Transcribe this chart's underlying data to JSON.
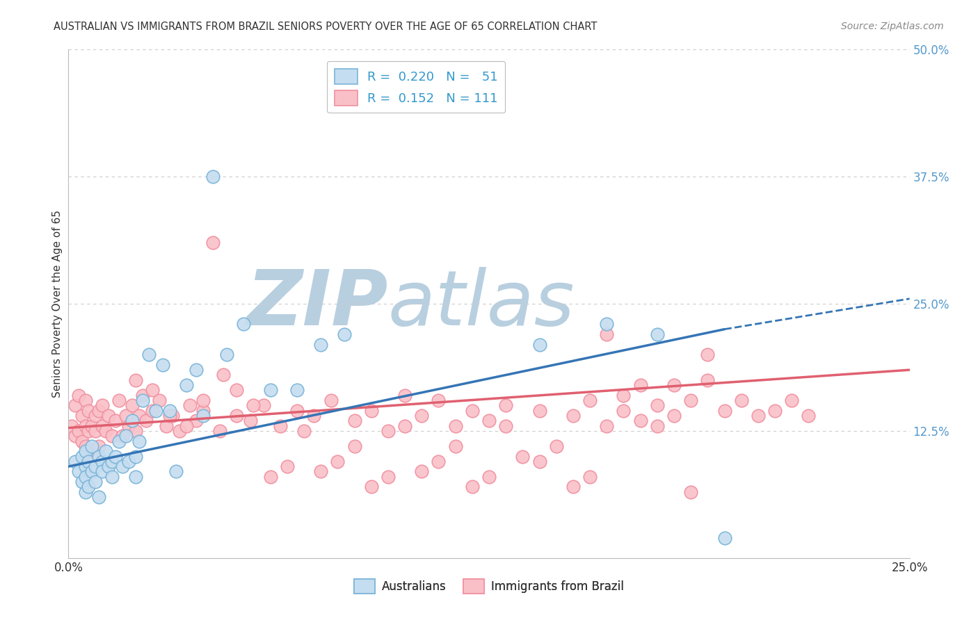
{
  "title": "AUSTRALIAN VS IMMIGRANTS FROM BRAZIL SENIORS POVERTY OVER THE AGE OF 65 CORRELATION CHART",
  "source": "Source: ZipAtlas.com",
  "ylabel": "Seniors Poverty Over the Age of 65",
  "xlim": [
    0.0,
    0.25
  ],
  "ylim": [
    0.0,
    0.5
  ],
  "grid_color": "#cccccc",
  "background_color": "#ffffff",
  "watermark_zip": "ZIP",
  "watermark_atlas": "atlas",
  "watermark_color_zip": "#b8cfe0",
  "watermark_color_atlas": "#b8cfe0",
  "blue_edge": "#7ab4d8",
  "pink_edge": "#f090a0",
  "blue_fill": "#c5ddf0",
  "pink_fill": "#fac0c8",
  "trend_blue": "#3575b5",
  "trend_pink": "#e06070",
  "title_color": "#333333",
  "source_color": "#888888",
  "tick_color_x": "#333333",
  "tick_color_y": "#5599cc",
  "label_color": "#333333",
  "legend_label_color": "#3399cc",
  "aus_x": [
    0.002,
    0.003,
    0.004,
    0.004,
    0.005,
    0.005,
    0.005,
    0.005,
    0.006,
    0.006,
    0.007,
    0.007,
    0.008,
    0.008,
    0.009,
    0.009,
    0.01,
    0.01,
    0.011,
    0.012,
    0.013,
    0.013,
    0.014,
    0.015,
    0.016,
    0.017,
    0.018,
    0.019,
    0.02,
    0.02,
    0.021,
    0.022,
    0.024,
    0.026,
    0.028,
    0.03,
    0.032,
    0.035,
    0.038,
    0.04,
    0.043,
    0.047,
    0.052,
    0.06,
    0.068,
    0.075,
    0.082,
    0.14,
    0.16,
    0.175,
    0.195
  ],
  "aus_y": [
    0.095,
    0.085,
    0.1,
    0.075,
    0.09,
    0.105,
    0.08,
    0.065,
    0.095,
    0.07,
    0.11,
    0.085,
    0.09,
    0.075,
    0.1,
    0.06,
    0.095,
    0.085,
    0.105,
    0.09,
    0.095,
    0.08,
    0.1,
    0.115,
    0.09,
    0.12,
    0.095,
    0.135,
    0.1,
    0.08,
    0.115,
    0.155,
    0.2,
    0.145,
    0.19,
    0.145,
    0.085,
    0.17,
    0.185,
    0.14,
    0.375,
    0.2,
    0.23,
    0.165,
    0.165,
    0.21,
    0.22,
    0.21,
    0.23,
    0.22,
    0.02
  ],
  "bra_x": [
    0.001,
    0.002,
    0.002,
    0.003,
    0.003,
    0.004,
    0.004,
    0.005,
    0.005,
    0.005,
    0.006,
    0.006,
    0.007,
    0.007,
    0.008,
    0.008,
    0.009,
    0.009,
    0.01,
    0.01,
    0.011,
    0.012,
    0.013,
    0.014,
    0.015,
    0.016,
    0.017,
    0.018,
    0.019,
    0.02,
    0.021,
    0.022,
    0.023,
    0.025,
    0.027,
    0.029,
    0.031,
    0.033,
    0.036,
    0.038,
    0.04,
    0.043,
    0.046,
    0.05,
    0.054,
    0.058,
    0.063,
    0.068,
    0.073,
    0.078,
    0.085,
    0.09,
    0.095,
    0.1,
    0.105,
    0.11,
    0.115,
    0.12,
    0.125,
    0.13,
    0.14,
    0.15,
    0.155,
    0.16,
    0.165,
    0.17,
    0.175,
    0.18,
    0.185,
    0.19,
    0.195,
    0.2,
    0.205,
    0.21,
    0.215,
    0.22,
    0.02,
    0.025,
    0.03,
    0.035,
    0.04,
    0.045,
    0.05,
    0.055,
    0.06,
    0.065,
    0.07,
    0.075,
    0.08,
    0.085,
    0.09,
    0.095,
    0.1,
    0.105,
    0.11,
    0.115,
    0.12,
    0.125,
    0.13,
    0.135,
    0.14,
    0.145,
    0.15,
    0.155,
    0.16,
    0.165,
    0.17,
    0.175,
    0.18,
    0.185,
    0.19
  ],
  "bra_y": [
    0.13,
    0.12,
    0.15,
    0.125,
    0.16,
    0.115,
    0.14,
    0.13,
    0.11,
    0.155,
    0.125,
    0.145,
    0.13,
    0.1,
    0.14,
    0.125,
    0.145,
    0.11,
    0.13,
    0.15,
    0.125,
    0.14,
    0.12,
    0.135,
    0.155,
    0.12,
    0.14,
    0.13,
    0.15,
    0.125,
    0.14,
    0.16,
    0.135,
    0.145,
    0.155,
    0.13,
    0.14,
    0.125,
    0.15,
    0.135,
    0.145,
    0.31,
    0.18,
    0.165,
    0.135,
    0.15,
    0.13,
    0.145,
    0.14,
    0.155,
    0.135,
    0.145,
    0.125,
    0.16,
    0.14,
    0.155,
    0.13,
    0.145,
    0.135,
    0.15,
    0.145,
    0.14,
    0.155,
    0.13,
    0.145,
    0.135,
    0.15,
    0.14,
    0.155,
    0.2,
    0.145,
    0.155,
    0.14,
    0.145,
    0.155,
    0.14,
    0.175,
    0.165,
    0.14,
    0.13,
    0.155,
    0.125,
    0.14,
    0.15,
    0.08,
    0.09,
    0.125,
    0.085,
    0.095,
    0.11,
    0.07,
    0.08,
    0.13,
    0.085,
    0.095,
    0.11,
    0.07,
    0.08,
    0.13,
    0.1,
    0.095,
    0.11,
    0.07,
    0.08,
    0.22,
    0.16,
    0.17,
    0.13,
    0.17,
    0.065,
    0.175
  ],
  "aus_trend_x0": 0.0,
  "aus_trend_y0": 0.09,
  "aus_trend_x1": 0.195,
  "aus_trend_y1": 0.225,
  "aus_trend_xdash0": 0.195,
  "aus_trend_ydash0": 0.225,
  "aus_trend_xdash1": 0.25,
  "aus_trend_ydash1": 0.255,
  "bra_trend_x0": 0.0,
  "bra_trend_y0": 0.128,
  "bra_trend_x1": 0.25,
  "bra_trend_y1": 0.185
}
